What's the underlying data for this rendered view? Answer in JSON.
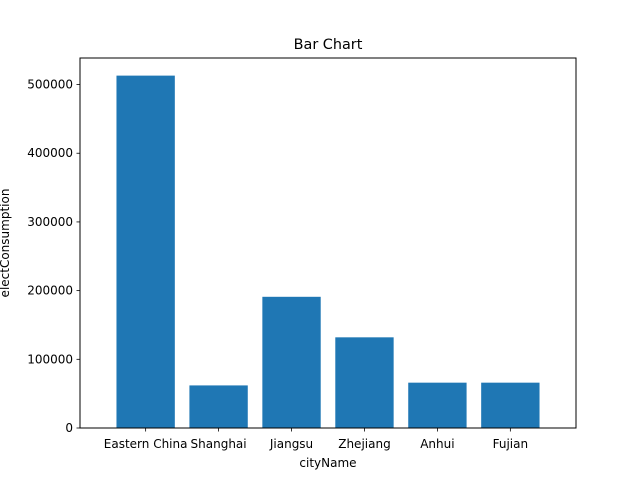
{
  "chart_data": {
    "type": "bar",
    "title": "Bar Chart",
    "xlabel": "cityName",
    "ylabel": "electConsumption",
    "categories": [
      "Eastern China",
      "Shanghai",
      "Jiangsu",
      "Zhejiang",
      "Anhui",
      "Fujian"
    ],
    "values": [
      513000,
      62000,
      191000,
      132000,
      66000,
      66000
    ],
    "ylim": [
      0,
      538650
    ],
    "yticks": [
      0,
      100000,
      200000,
      300000,
      400000,
      500000
    ],
    "ytick_labels": [
      "0",
      "100000",
      "200000",
      "300000",
      "400000",
      "500000"
    ],
    "grid": false,
    "legend": "none",
    "bar_color": "#1f77b4"
  }
}
